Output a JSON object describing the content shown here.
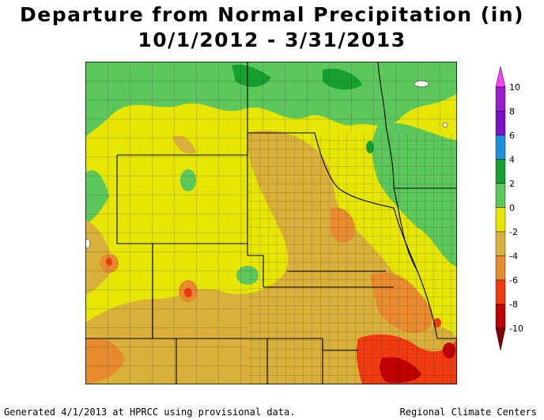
{
  "title": {
    "line1": "Departure from Normal Precipitation (in)",
    "line2": "10/1/2012 - 3/31/2013"
  },
  "legend": {
    "tick_labels": [
      "10",
      "8",
      "6",
      "4",
      "2",
      "0",
      "-2",
      "-4",
      "-6",
      "-8",
      "-10"
    ],
    "bins": [
      {
        "from": 8,
        "to": 10,
        "color": "#9b1fd1"
      },
      {
        "from": 6,
        "to": 8,
        "color": "#7b10c8"
      },
      {
        "from": 4,
        "to": 6,
        "color": "#1e90e0"
      },
      {
        "from": 2,
        "to": 4,
        "color": "#16a030"
      },
      {
        "from": 0,
        "to": 2,
        "color": "#5cc85c"
      },
      {
        "from": -2,
        "to": 0,
        "color": "#e6e600"
      },
      {
        "from": -4,
        "to": -2,
        "color": "#d8b03a"
      },
      {
        "from": -6,
        "to": -4,
        "color": "#e88a2e"
      },
      {
        "from": -8,
        "to": -6,
        "color": "#f03a10"
      },
      {
        "from": -10,
        "to": -8,
        "color": "#c00000"
      }
    ],
    "overflow_high_color": "#ff40ff",
    "overflow_low_color": "#800000"
  },
  "footer": {
    "left": "Generated 4/1/2013 at HPRCC using provisional data.",
    "right": "Regional Climate Centers"
  }
}
